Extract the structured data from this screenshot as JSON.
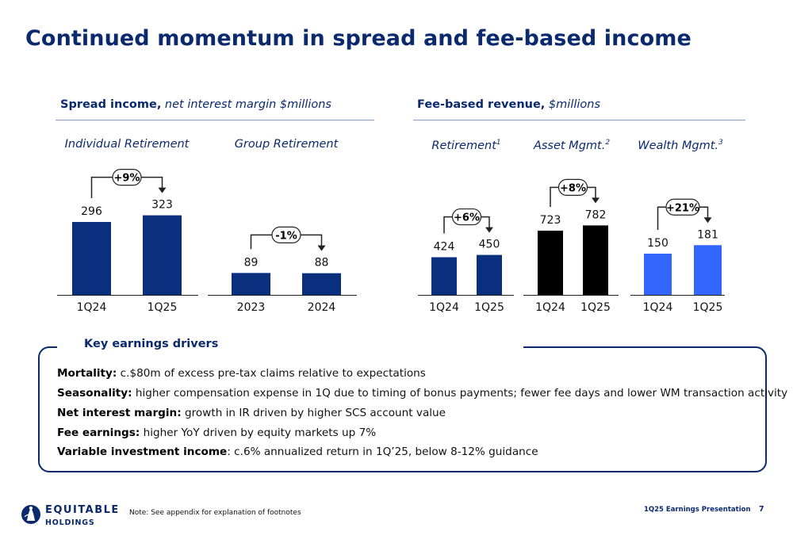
{
  "title": "Continued momentum in spread and fee-based income",
  "spread_section": {
    "label": "Spread income,",
    "sublabel": " net interest margin $millions"
  },
  "fee_section": {
    "label": "Fee-based revenue,",
    "sublabel": " $millions"
  },
  "colors": {
    "navy": "#0b2a6e",
    "black": "#000000",
    "bright_blue": "#3366ff",
    "text_navy": "#0b2a6e"
  },
  "chart_data": [
    {
      "type": "bar",
      "title": "Individual Retirement",
      "title_sup": "",
      "categories": [
        "1Q24",
        "1Q25"
      ],
      "values": [
        296,
        323
      ],
      "growth": "+9%",
      "color": "#0b2f7f",
      "ylim": [
        0,
        500
      ]
    },
    {
      "type": "bar",
      "title": "Group Retirement",
      "title_sup": "",
      "categories": [
        "2023",
        "2024"
      ],
      "values": [
        89,
        88
      ],
      "growth": "-1%",
      "color": "#0b2f7f",
      "ylim": [
        0,
        500
      ]
    },
    {
      "type": "bar",
      "title": "Retirement",
      "title_sup": "1",
      "categories": [
        "1Q24",
        "1Q25"
      ],
      "values": [
        424,
        450
      ],
      "growth": "+6%",
      "color": "#0b2f7f",
      "ylim": [
        0,
        1000
      ]
    },
    {
      "type": "bar",
      "title": "Asset Mgmt.",
      "title_sup": "2",
      "categories": [
        "1Q24",
        "1Q25"
      ],
      "values": [
        723,
        782
      ],
      "growth": "+8%",
      "color": "#000000",
      "ylim": [
        0,
        1000
      ]
    },
    {
      "type": "bar",
      "title": "Wealth Mgmt.",
      "title_sup": "3",
      "categories": [
        "1Q24",
        "1Q25"
      ],
      "values": [
        150,
        181
      ],
      "growth": "+21%",
      "color": "#3366ff",
      "ylim": [
        0,
        300
      ]
    }
  ],
  "drivers": {
    "heading": "Key earnings drivers",
    "items": [
      {
        "label": "Mortality:",
        "text": " c.$80m of excess pre-tax claims relative to expectations"
      },
      {
        "label": "Seasonality:",
        "text": " higher compensation expense in 1Q due to timing of bonus payments; fewer fee days and lower WM transaction activity"
      },
      {
        "label": "Net interest margin:",
        "text": " growth in IR driven by higher SCS account value"
      },
      {
        "label": "Fee earnings:",
        "text": " higher YoY driven by equity markets up 7%"
      },
      {
        "label": "Variable investment income",
        "text": ": c.6% annualized return in 1Q’25, below 8-12% guidance"
      }
    ]
  },
  "footer": {
    "logo_line1": "EQUITABLE",
    "logo_line2": "HOLDINGS",
    "note": "Note: See appendix for explanation of footnotes",
    "presentation": "1Q25 Earnings Presentation",
    "page": "7",
    "logo_icon": "equitable-logo-icon"
  }
}
